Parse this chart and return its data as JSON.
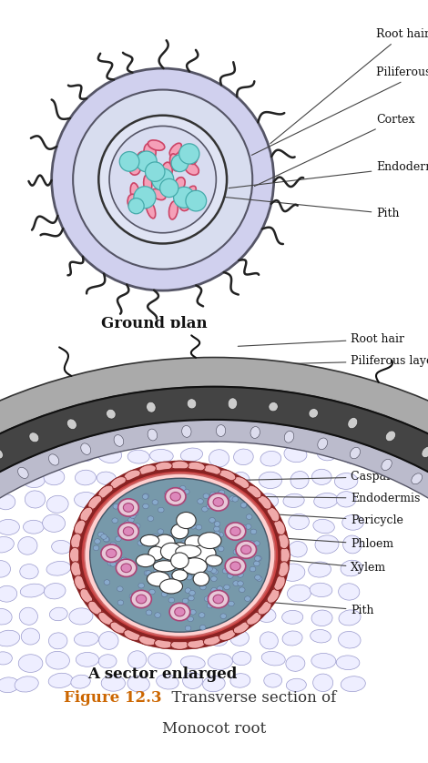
{
  "bg_color": "#FFFFFF",
  "ground_plan_label": "Ground plan",
  "sector_label": "A sector enlarged",
  "figure_label": "Figure 12.3",
  "figure_rest": "  Transverse section of",
  "figure_line2": "Monocot root",
  "figure_label_color": "#CC6600",
  "figure_text_color": "#333333",
  "gp_outer_color": "#D0D0EE",
  "gp_outer_edge": "#555566",
  "gp_inner_color": "#D8DDEF",
  "gp_stele_color": "#E0E4F4",
  "gp_phloem_face": "#F5A0B8",
  "gp_phloem_edge": "#CC4466",
  "gp_cyan_face": "#88DDDD",
  "gp_cyan_edge": "#44AAAA",
  "cortex_cell_face": "#EEEEF8",
  "cortex_cell_edge": "#8888BB",
  "piliferous_face": "#BBBBBB",
  "piliferous_edge": "#333333",
  "piliferous_cell_face": "#DDDDDD",
  "endo_outer_face": "#E88080",
  "endo_outer_edge": "#AA2222",
  "endo_cell_face": "#F0AAAA",
  "stele_bg_face": "#7799AA",
  "stele_bg_edge": "#445566",
  "pericycle_face": "#FFCCCC",
  "pericycle_edge": "#CC8888",
  "xylem_face": "#FFFFFF",
  "xylem_edge": "#333333",
  "phloem_outer_face": "#E8B8C8",
  "phloem_outer_edge": "#AA4477",
  "phloem_inner_face": "#CC88AA",
  "pith_bg_face": "#8899AA"
}
